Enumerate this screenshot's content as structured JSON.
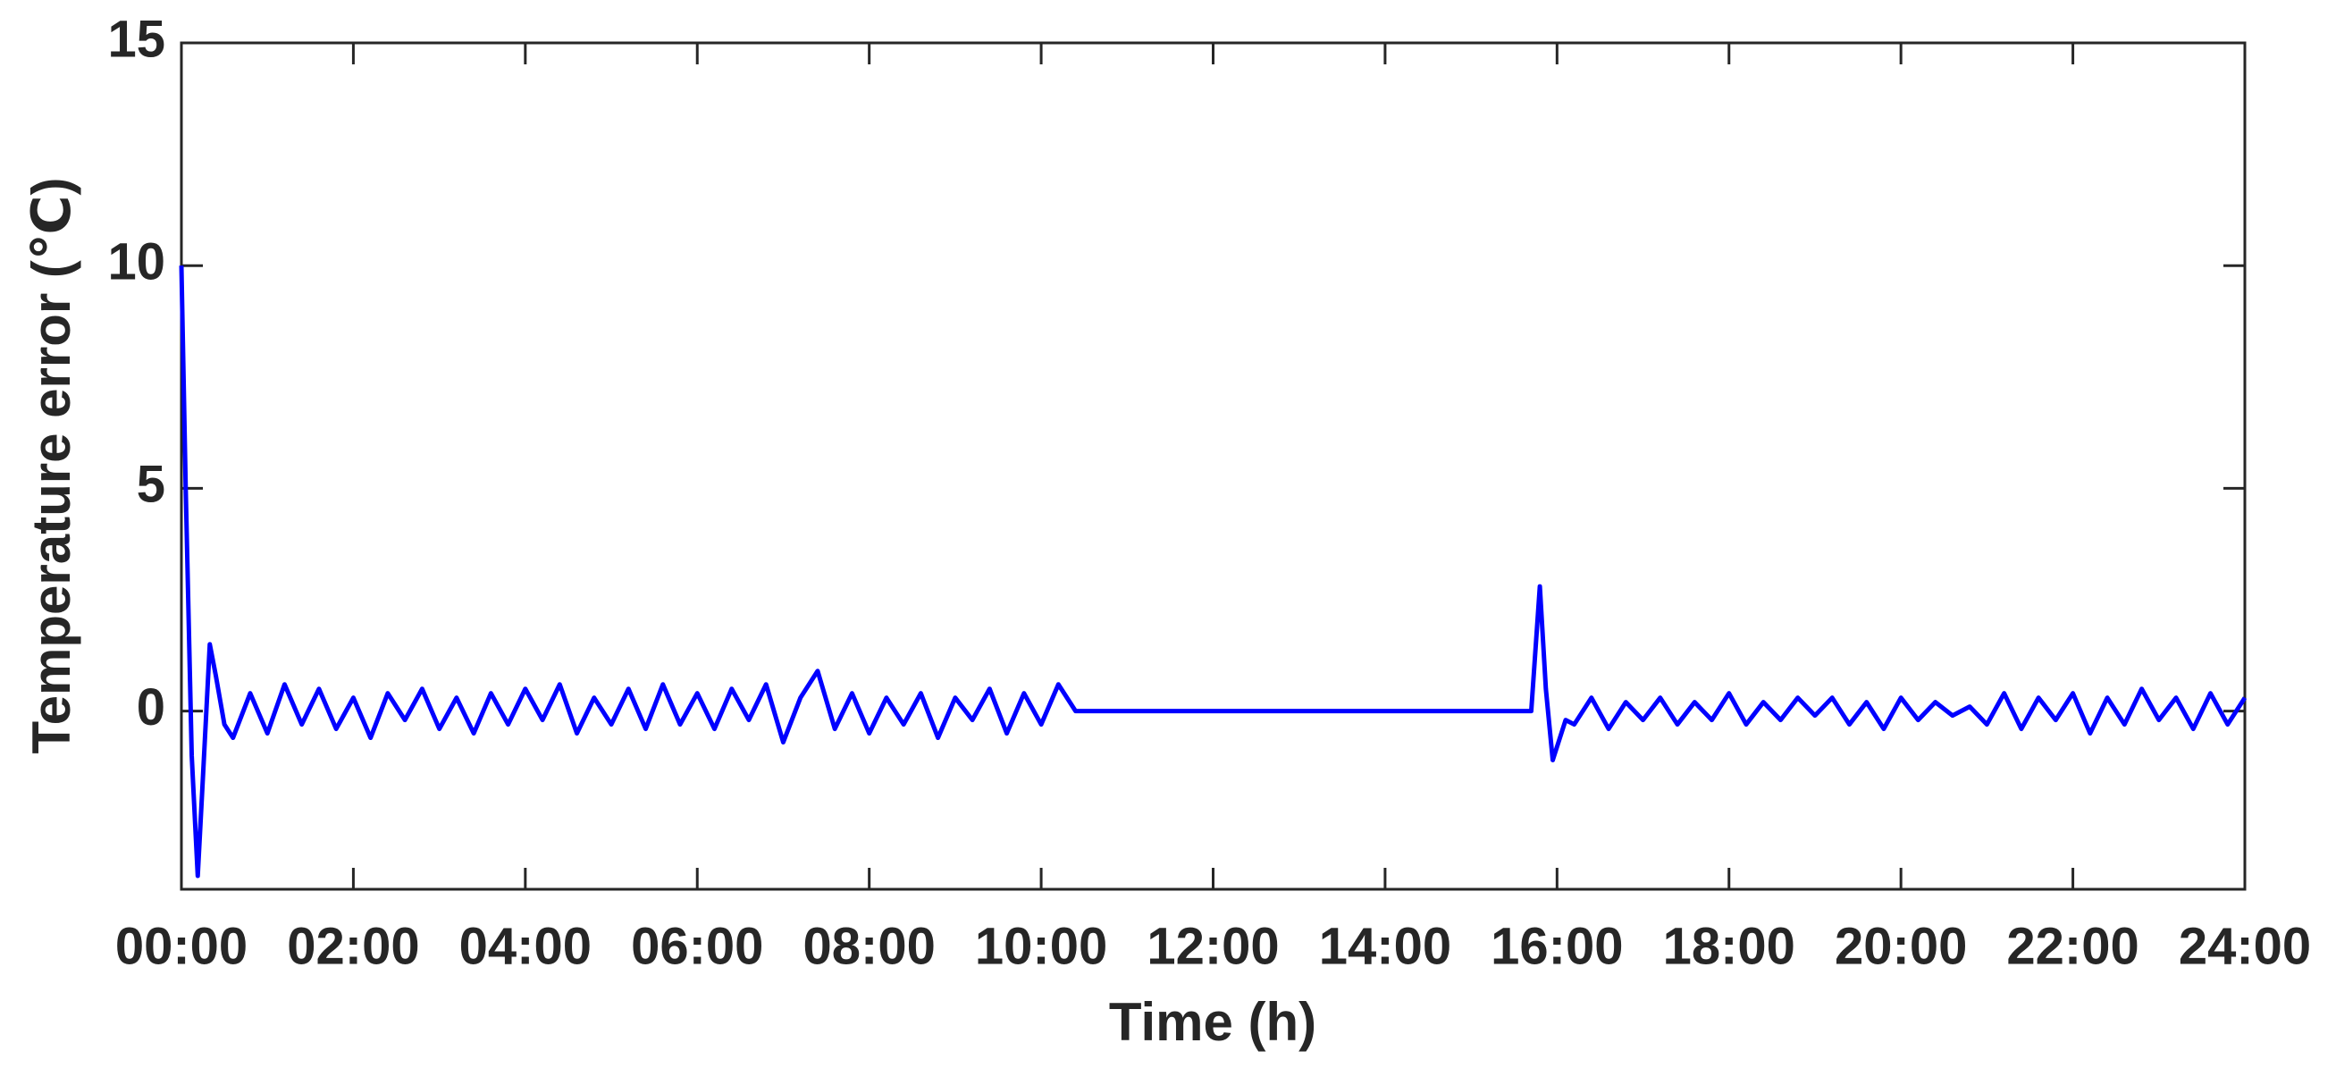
{
  "chart_data": {
    "type": "line",
    "xlabel": "Time (h)",
    "ylabel": "Temperature error (℃)",
    "xlim": [
      0,
      24
    ],
    "xticks": [
      {
        "value": 0,
        "label": "00:00"
      },
      {
        "value": 2,
        "label": "02:00"
      },
      {
        "value": 4,
        "label": "04:00"
      },
      {
        "value": 6,
        "label": "06:00"
      },
      {
        "value": 8,
        "label": "08:00"
      },
      {
        "value": 10,
        "label": "10:00"
      },
      {
        "value": 12,
        "label": "12:00"
      },
      {
        "value": 14,
        "label": "14:00"
      },
      {
        "value": 16,
        "label": "16:00"
      },
      {
        "value": 18,
        "label": "18:00"
      },
      {
        "value": 20,
        "label": "20:00"
      },
      {
        "value": 22,
        "label": "22:00"
      },
      {
        "value": 24,
        "label": "24:00"
      }
    ],
    "ylim": [
      -4,
      15
    ],
    "yticks": [
      0,
      5,
      10,
      15
    ],
    "grid": false,
    "x": [
      0,
      0.05,
      0.12,
      0.19,
      0.25,
      0.33,
      0.4,
      0.5,
      0.6,
      0.8,
      1.0,
      1.2,
      1.4,
      1.6,
      1.8,
      2.0,
      2.2,
      2.4,
      2.6,
      2.8,
      3.0,
      3.2,
      3.4,
      3.6,
      3.8,
      4.0,
      4.2,
      4.4,
      4.6,
      4.8,
      5.0,
      5.2,
      5.4,
      5.6,
      5.8,
      6.0,
      6.2,
      6.4,
      6.6,
      6.8,
      7.0,
      7.2,
      7.4,
      7.6,
      7.8,
      8.0,
      8.2,
      8.4,
      8.6,
      8.8,
      9.0,
      9.2,
      9.4,
      9.6,
      9.8,
      10.0,
      10.2,
      10.4,
      10.45,
      15.7,
      15.8,
      15.87,
      15.95,
      16.1,
      16.2,
      16.4,
      16.6,
      16.8,
      17.0,
      17.2,
      17.4,
      17.6,
      17.8,
      18.0,
      18.2,
      18.4,
      18.6,
      18.8,
      19.0,
      19.2,
      19.4,
      19.6,
      19.8,
      20.0,
      20.2,
      20.4,
      20.6,
      20.8,
      21.0,
      21.2,
      21.4,
      21.6,
      21.8,
      22.0,
      22.2,
      22.4,
      22.6,
      22.8,
      23.0,
      23.2,
      23.4,
      23.6,
      23.8,
      24.0
    ],
    "series": [
      {
        "color": "#0000ff",
        "values": [
          10,
          5,
          -1,
          -3.7,
          -1.5,
          1.5,
          0.8,
          -0.3,
          -0.6,
          0.4,
          -0.5,
          0.6,
          -0.3,
          0.5,
          -0.4,
          0.3,
          -0.6,
          0.4,
          -0.2,
          0.5,
          -0.4,
          0.3,
          -0.5,
          0.4,
          -0.3,
          0.5,
          -0.2,
          0.6,
          -0.5,
          0.3,
          -0.3,
          0.5,
          -0.4,
          0.6,
          -0.3,
          0.4,
          -0.4,
          0.5,
          -0.2,
          0.6,
          -0.7,
          0.3,
          0.9,
          -0.4,
          0.4,
          -0.5,
          0.3,
          -0.3,
          0.4,
          -0.6,
          0.3,
          -0.2,
          0.5,
          -0.5,
          0.4,
          -0.3,
          0.6,
          0,
          0,
          0,
          2.8,
          0.5,
          -1.1,
          -0.2,
          -0.3,
          0.3,
          -0.4,
          0.2,
          -0.2,
          0.3,
          -0.3,
          0.2,
          -0.2,
          0.4,
          -0.3,
          0.2,
          -0.2,
          0.3,
          -0.1,
          0.3,
          -0.3,
          0.2,
          -0.4,
          0.3,
          -0.2,
          0.2,
          -0.1,
          0.1,
          -0.3,
          0.4,
          -0.4,
          0.3,
          -0.2,
          0.4,
          -0.5,
          0.3,
          -0.3,
          0.5,
          -0.2,
          0.3,
          -0.4,
          0.4,
          -0.3,
          0.3
        ]
      }
    ]
  }
}
